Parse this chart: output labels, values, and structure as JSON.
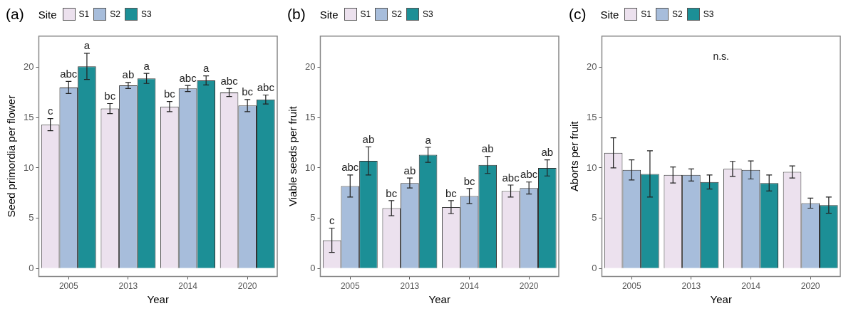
{
  "chart_data": [
    {
      "type": "bar",
      "title": "(a)",
      "xlabel": "Year",
      "ylabel": "Seed primordia per flower",
      "legend_title": "Site",
      "legend": "top",
      "categories": [
        "2005",
        "2013",
        "2014",
        "2020"
      ],
      "ylim": [
        -0.8,
        23.1
      ],
      "yticks": [
        0,
        5,
        10,
        15,
        20
      ],
      "grid": false,
      "series": [
        {
          "name": "S1",
          "color": "#ece1ee",
          "values": [
            14.3,
            15.9,
            16.1,
            17.5
          ],
          "errors": [
            0.6,
            0.5,
            0.5,
            0.4
          ],
          "value_labels": [
            "c",
            "bc",
            "bc",
            "abc"
          ]
        },
        {
          "name": "S2",
          "color": "#a7bddb",
          "values": [
            18.0,
            18.2,
            17.9,
            16.2
          ],
          "errors": [
            0.6,
            0.3,
            0.3,
            0.6
          ],
          "value_labels": [
            "abc",
            "ab",
            "abc",
            "bc"
          ]
        },
        {
          "name": "S3",
          "color": "#1c8f96",
          "values": [
            20.1,
            18.9,
            18.7,
            16.8
          ],
          "errors": [
            1.3,
            0.5,
            0.45,
            0.45
          ],
          "value_labels": [
            "a",
            "a",
            "a",
            "abc"
          ]
        }
      ]
    },
    {
      "type": "bar",
      "title": "(b)",
      "xlabel": "Year",
      "ylabel": "Viable seeds per fruit",
      "legend_title": "Site",
      "legend": "top",
      "categories": [
        "2005",
        "2013",
        "2014",
        "2020"
      ],
      "ylim": [
        -0.8,
        23.1
      ],
      "yticks": [
        0,
        5,
        10,
        15,
        20
      ],
      "grid": false,
      "series": [
        {
          "name": "S1",
          "color": "#ece1ee",
          "values": [
            2.8,
            6.0,
            6.1,
            7.7
          ],
          "errors": [
            1.2,
            0.75,
            0.65,
            0.6
          ],
          "value_labels": [
            "c",
            "bc",
            "bc",
            "abc"
          ]
        },
        {
          "name": "S2",
          "color": "#a7bddb",
          "values": [
            8.2,
            8.5,
            7.2,
            8.0
          ],
          "errors": [
            1.1,
            0.5,
            0.75,
            0.6
          ],
          "value_labels": [
            "abc",
            "ab",
            "bc",
            "abc"
          ]
        },
        {
          "name": "S3",
          "color": "#1c8f96",
          "values": [
            10.7,
            11.3,
            10.3,
            10.0
          ],
          "errors": [
            1.4,
            0.75,
            0.85,
            0.8
          ],
          "value_labels": [
            "ab",
            "a",
            "ab",
            "ab"
          ]
        }
      ]
    },
    {
      "type": "bar",
      "title": "(c)",
      "xlabel": "Year",
      "ylabel": "Aborts per fruit",
      "legend_title": "Site",
      "legend": "top",
      "categories": [
        "2005",
        "2013",
        "2014",
        "2020"
      ],
      "ylim": [
        -0.8,
        23.1
      ],
      "yticks": [
        0,
        5,
        10,
        15,
        20
      ],
      "grid": false,
      "annotations": [
        "n.s."
      ],
      "series": [
        {
          "name": "S1",
          "color": "#ece1ee",
          "values": [
            11.5,
            9.3,
            9.9,
            9.6
          ],
          "errors": [
            1.5,
            0.8,
            0.75,
            0.6
          ]
        },
        {
          "name": "S2",
          "color": "#a7bddb",
          "values": [
            9.8,
            9.3,
            9.8,
            6.5
          ],
          "errors": [
            1.0,
            0.6,
            0.9,
            0.5
          ]
        },
        {
          "name": "S3",
          "color": "#1c8f96",
          "values": [
            9.4,
            8.6,
            8.5,
            6.3
          ],
          "errors": [
            2.3,
            0.7,
            0.8,
            0.8
          ]
        }
      ]
    }
  ]
}
